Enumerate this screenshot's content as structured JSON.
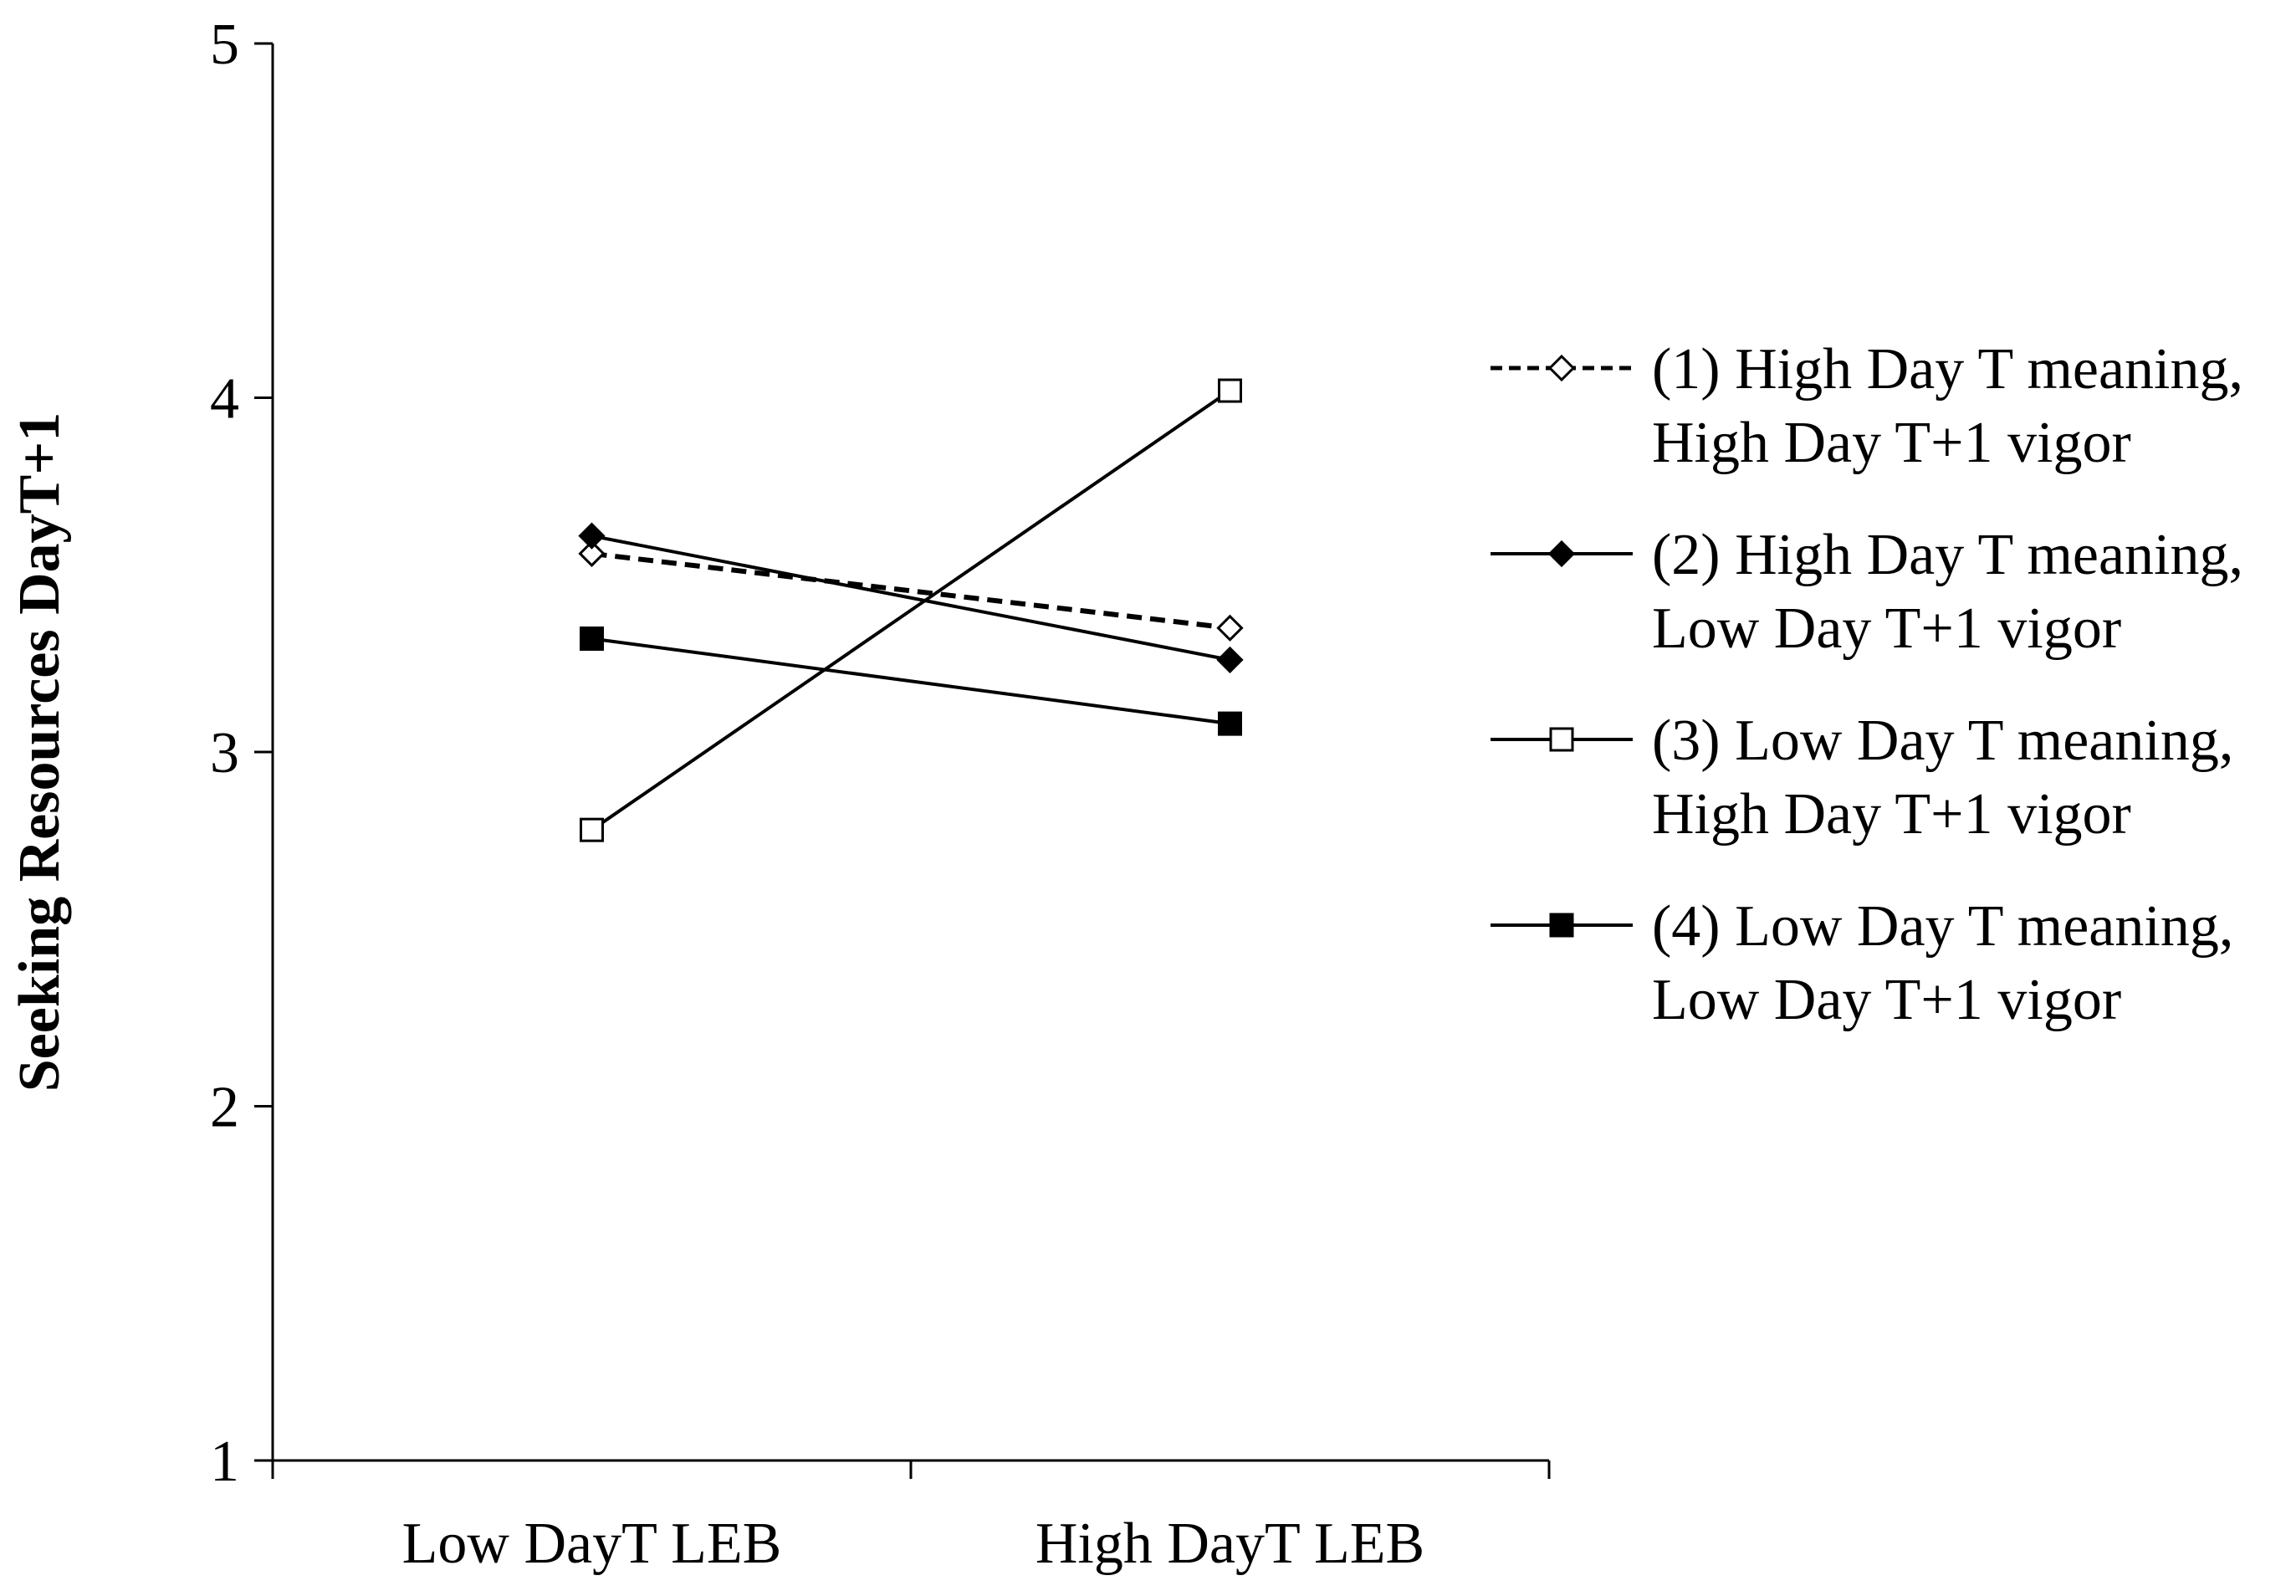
{
  "chart_data": {
    "type": "line",
    "title": "",
    "xlabel": "",
    "ylabel": "Seeking Resources DayT+1",
    "categories": [
      "Low DayT LEB",
      "High DayT LEB"
    ],
    "ylim": [
      1,
      5
    ],
    "yticks": [
      "1",
      "2",
      "3",
      "4",
      "5"
    ],
    "grid": false,
    "legend_position": "right",
    "series": [
      {
        "name": "(1) High Day T meaning, High Day T+1 vigor",
        "label_lines": [
          "(1) High Day T meaning,",
          "High Day T+1 vigor"
        ],
        "values": [
          3.56,
          3.35
        ],
        "marker": "diamond-open",
        "line": "dashed",
        "color": "#000000"
      },
      {
        "name": "(2) High Day T meaning, Low Day T+1 vigor",
        "label_lines": [
          "(2) High Day T meaning,",
          "Low Day T+1 vigor"
        ],
        "values": [
          3.61,
          3.26
        ],
        "marker": "diamond-filled",
        "line": "solid",
        "color": "#000000"
      },
      {
        "name": "(3) Low Day T meaning, High Day T+1 vigor",
        "label_lines": [
          "(3) Low Day T meaning,",
          "High Day T+1 vigor"
        ],
        "values": [
          2.78,
          4.02
        ],
        "marker": "square-open",
        "line": "solid",
        "color": "#000000"
      },
      {
        "name": "(4) Low Day T meaning, Low Day T+1 vigor",
        "label_lines": [
          "(4) Low Day T meaning,",
          "Low Day T+1 vigor"
        ],
        "values": [
          3.32,
          3.08
        ],
        "marker": "square-filled",
        "line": "solid",
        "color": "#000000"
      }
    ]
  }
}
